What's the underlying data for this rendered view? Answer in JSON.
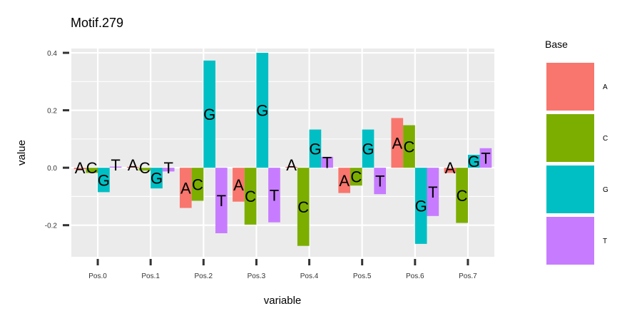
{
  "chart_data": {
    "type": "bar",
    "title": "Motif.279",
    "xlabel": "variable",
    "ylabel": "value",
    "categories": [
      "Pos.0",
      "Pos.1",
      "Pos.2",
      "Pos.3",
      "Pos.4",
      "Pos.5",
      "Pos.6",
      "Pos.7"
    ],
    "ylim": [
      -0.31,
      0.415
    ],
    "yticks": [
      -0.2,
      0.0,
      0.2,
      0.4
    ],
    "ytick_labels": [
      "-0.2",
      "0.0",
      "0.2",
      "0.4"
    ],
    "grid": true,
    "legend": {
      "title": "Base",
      "position": "right"
    },
    "series": [
      {
        "name": "A",
        "color": "#F8766D",
        "values": [
          -0.005,
          0.003,
          -0.14,
          -0.118,
          0.003,
          -0.088,
          0.173,
          -0.018
        ]
      },
      {
        "name": "C",
        "color": "#7CAE00",
        "values": [
          -0.018,
          -0.01,
          -0.115,
          -0.198,
          -0.272,
          -0.062,
          0.148,
          -0.192
        ]
      },
      {
        "name": "G",
        "color": "#00BFC4",
        "values": [
          -0.085,
          -0.072,
          0.373,
          0.4,
          0.133,
          0.133,
          -0.265,
          0.045
        ]
      },
      {
        "name": "T",
        "color": "#C77CFF",
        "values": [
          0.004,
          -0.013,
          -0.228,
          -0.19,
          0.038,
          -0.092,
          -0.168,
          0.068
        ]
      }
    ]
  }
}
